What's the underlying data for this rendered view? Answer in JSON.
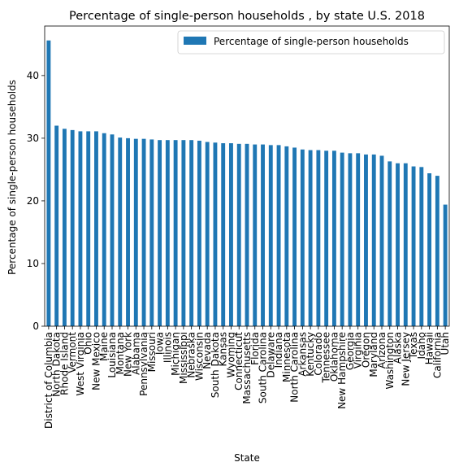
{
  "chart_data": {
    "type": "bar",
    "title": "Percentage of single-person households , by state U.S. 2018",
    "xlabel": "State",
    "ylabel": "Percentage of single-person households",
    "ylim": [
      0,
      47.9
    ],
    "yticks": [
      0,
      10,
      20,
      30,
      40
    ],
    "grid": false,
    "legend_position": "top-right",
    "categories": [
      "District of Columbia",
      "North Dakota",
      "Rhode Island",
      "Vermont",
      "West Virginia",
      "Ohio",
      "New Mexico",
      "Maine",
      "Louisiana",
      "Montana",
      "New York",
      "Alabama",
      "Pennsylvania",
      "Missouri",
      "Iowa",
      "Illinois",
      "Michigan",
      "Mississippi",
      "Nebraska",
      "Wisconsin",
      "Nevada",
      "South Dakota",
      "Kansas",
      "Wyoming",
      "Connecticut",
      "Massachusetts",
      "Florida",
      "South Carolina",
      "Delaware",
      "Indiana",
      "Minnesota",
      "North Carolina",
      "Arkansas",
      "Kentucky",
      "Colorado",
      "Tennessee",
      "Oklahoma",
      "New Hampshire",
      "Georgia",
      "Virginia",
      "Oregon",
      "Maryland",
      "Arizona",
      "Washington",
      "Alaska",
      "New Jersey",
      "Texas",
      "Idaho",
      "Hawaii",
      "California",
      "Utah"
    ],
    "series": [
      {
        "name": "Percentage of single-person households",
        "color": "#1f77b4",
        "values": [
          45.6,
          32.0,
          31.5,
          31.3,
          31.1,
          31.1,
          31.1,
          30.8,
          30.6,
          30.1,
          30.0,
          29.9,
          29.9,
          29.8,
          29.7,
          29.7,
          29.7,
          29.7,
          29.7,
          29.6,
          29.4,
          29.3,
          29.2,
          29.2,
          29.1,
          29.1,
          29.0,
          29.0,
          28.9,
          28.9,
          28.7,
          28.5,
          28.2,
          28.1,
          28.1,
          28.0,
          28.0,
          27.7,
          27.6,
          27.6,
          27.4,
          27.4,
          27.2,
          26.3,
          26.0,
          26.0,
          25.5,
          25.4,
          24.4,
          24.0,
          19.4
        ]
      }
    ]
  }
}
